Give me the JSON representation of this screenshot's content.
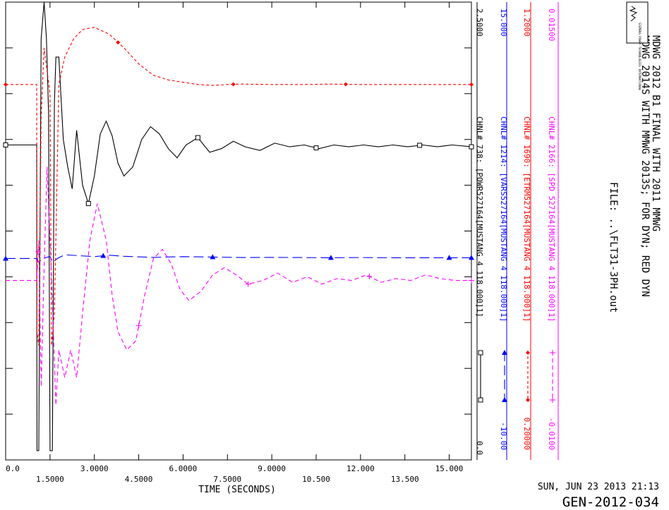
{
  "header": {
    "title_line1": "MDWG 2012 B1 FINAL WITH 2011 MMWG",
    "title_line2": "MDWG 2014S WITH MMWG 2013S; FOR DYN; RED DYN",
    "file": "FILE: ..\\FLT31-3PH.out",
    "logo_text": "SIEMENS POWER TECHNOLOGIES INTERNATIONAL"
  },
  "footer": {
    "date": "SUN, JUN 23 2013   21:13",
    "case_id": "GEN-2012-034"
  },
  "colors": {
    "black": "#000000",
    "blue": "#0000ff",
    "red": "#ff0000",
    "magenta": "#ff00ff"
  },
  "chart_data": {
    "type": "line",
    "xlabel": "TIME  (SECONDS)",
    "xlim": [
      0,
      15.75
    ],
    "x_ticks_top": [
      "0.0",
      "3.0000",
      "6.0000",
      "9.0000",
      "12.000",
      "15.000"
    ],
    "x_ticks_bottom": [
      "1.5000",
      "4.5000",
      "7.5000",
      "10.500",
      "13.500"
    ],
    "grid": false,
    "series": [
      {
        "name": "CHNL# 738: [POWR527164[MUSTANG 4   118.000]1]",
        "color": "#000000",
        "dash": "solid",
        "marker": "square",
        "scale_top": "2.5000",
        "scale_bottom": "0.0",
        "x": [
          0,
          1.05,
          1.06,
          1.12,
          1.2,
          1.3,
          1.38,
          1.45,
          1.5,
          1.58,
          1.65,
          1.7,
          1.8,
          1.95,
          2.1,
          2.25,
          2.4,
          2.6,
          2.8,
          3.0,
          3.2,
          3.4,
          3.6,
          3.8,
          4.0,
          4.3,
          4.6,
          4.9,
          5.2,
          5.5,
          5.8,
          6.1,
          6.5,
          6.9,
          7.3,
          7.7,
          8.1,
          8.6,
          9.1,
          9.6,
          10.1,
          10.6,
          11.1,
          11.6,
          12.1,
          12.6,
          13.1,
          13.6,
          14.1,
          14.6,
          15.1,
          15.75
        ],
        "y": [
          1.72,
          1.72,
          0.05,
          0.05,
          2.3,
          2.5,
          2.3,
          1.9,
          0.05,
          0.05,
          1.95,
          2.2,
          2.2,
          1.75,
          1.6,
          1.48,
          1.8,
          1.5,
          1.4,
          1.55,
          1.78,
          1.85,
          1.77,
          1.62,
          1.55,
          1.6,
          1.75,
          1.82,
          1.78,
          1.7,
          1.65,
          1.72,
          1.76,
          1.68,
          1.7,
          1.74,
          1.71,
          1.69,
          1.73,
          1.71,
          1.72,
          1.7,
          1.72,
          1.71,
          1.72,
          1.71,
          1.72,
          1.71,
          1.72,
          1.71,
          1.72,
          1.71
        ]
      },
      {
        "name": "CHNL# 1214: [VARS527164[MUSTANG 4   118.000]1]",
        "color": "#0000ff",
        "dash": "long-dash",
        "marker": "triangle",
        "scale_top": "15.000",
        "scale_bottom": "-10.00",
        "x": [
          0,
          1.05,
          1.1,
          1.2,
          1.35,
          1.5,
          1.6,
          1.75,
          2.0,
          2.5,
          3.0,
          3.5,
          4.0,
          5.0,
          6.0,
          7.0,
          8.0,
          9.0,
          10.0,
          11.0,
          12.0,
          13.0,
          14.0,
          15.0,
          15.75
        ],
        "y": [
          1.0,
          1.0,
          0.8,
          0.9,
          1.05,
          1.1,
          0.8,
          1.0,
          1.2,
          1.15,
          1.1,
          1.18,
          1.12,
          1.06,
          1.1,
          1.08,
          1.05,
          1.06,
          1.05,
          1.04,
          1.05,
          1.04,
          1.04,
          1.04,
          1.04
        ]
      },
      {
        "name": "CHNL# 1690: [ETRM527164[MUSTANG 4   118.000]1]",
        "color": "#ff0000",
        "dash": "short-dash",
        "marker": "diamond",
        "scale_top": "1.2000",
        "scale_bottom": "0.20000",
        "x": [
          0,
          1.05,
          1.06,
          1.12,
          1.2,
          1.3,
          1.4,
          1.5,
          1.55,
          1.65,
          1.8,
          2.0,
          2.3,
          2.6,
          3.0,
          3.5,
          4.0,
          4.5,
          5.0,
          5.5,
          6.0,
          6.5,
          7.0,
          7.5,
          8.0,
          9.0,
          10.0,
          11.0,
          12.0,
          13.0,
          14.0,
          15.0,
          15.75
        ],
        "y": [
          1.02,
          1.02,
          0.48,
          0.45,
          0.95,
          1.1,
          1.05,
          1.0,
          0.45,
          0.52,
          1.02,
          1.08,
          1.12,
          1.14,
          1.145,
          1.13,
          1.1,
          1.065,
          1.04,
          1.03,
          1.025,
          1.02,
          1.018,
          1.02,
          1.021,
          1.02,
          1.02,
          1.021,
          1.02,
          1.02,
          1.02,
          1.02,
          1.02
        ]
      },
      {
        "name": "CHNL# 2166: [SPD 527164[MUSTANG 4   118.000]1]",
        "color": "#ff00ff",
        "dash": "dash",
        "marker": "plus",
        "scale_top": "0.01500",
        "scale_bottom": "-0.0100",
        "x": [
          0,
          1.05,
          1.12,
          1.2,
          1.3,
          1.4,
          1.55,
          1.7,
          1.8,
          2.0,
          2.2,
          2.4,
          2.6,
          2.85,
          3.1,
          3.4,
          3.6,
          3.8,
          4.1,
          4.4,
          4.7,
          5.0,
          5.3,
          5.6,
          5.9,
          6.2,
          6.6,
          7.0,
          7.4,
          7.8,
          8.2,
          8.7,
          9.2,
          9.7,
          10.2,
          10.7,
          11.2,
          11.7,
          12.2,
          12.7,
          13.2,
          13.7,
          14.2,
          14.7,
          15.2,
          15.75
        ],
        "y": [
          -0.0002,
          -0.0002,
          0.002,
          -0.006,
          0.0005,
          0.006,
          0.0,
          -0.007,
          -0.004,
          -0.0055,
          -0.004,
          -0.0055,
          -0.002,
          0.002,
          0.004,
          0.002,
          -0.001,
          -0.003,
          -0.004,
          -0.0035,
          -0.001,
          0.001,
          0.0015,
          0.0007,
          -0.0007,
          -0.0013,
          -0.0008,
          0.0001,
          0.0005,
          0.0001,
          -0.0004,
          -0.0002,
          0.0002,
          -0.0003,
          0.0,
          -0.0004,
          -0.0001,
          -0.0002,
          0.0001,
          -0.0003,
          -0.0001,
          -0.0002,
          0.0001,
          -0.0001,
          -0.0002,
          -0.0002
        ]
      }
    ]
  }
}
